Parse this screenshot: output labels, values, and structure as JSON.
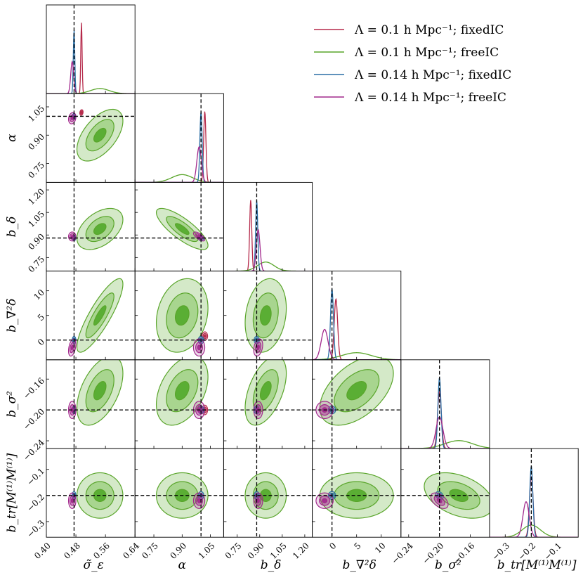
{
  "chart_data": {
    "type": "corner",
    "title": "",
    "params": [
      {
        "key": "sigma_eps",
        "label": "σ̃_ε",
        "range": [
          0.4,
          0.64
        ],
        "ticks": [
          0.4,
          0.48,
          0.56,
          0.64
        ],
        "tick_labels": [
          "0.40",
          "0.48",
          "0.56",
          "0.64"
        ],
        "truth": 0.475
      },
      {
        "key": "alpha",
        "label": "α",
        "range": [
          0.65,
          1.12
        ],
        "ticks": [
          0.75,
          0.9,
          1.05
        ],
        "tick_labels": [
          "0.75",
          "0.90",
          "1.05"
        ],
        "truth": 1.0
      },
      {
        "key": "b_delta",
        "label": "b_δ",
        "range": [
          0.66,
          1.25
        ],
        "ticks": [
          0.75,
          0.9,
          1.05,
          1.2
        ],
        "tick_labels": [
          "0.75",
          "0.90",
          "1.05",
          "1.20"
        ],
        "truth": 0.88
      },
      {
        "key": "b_lap",
        "label": "b_∇²δ",
        "range": [
          -4,
          14
        ],
        "ticks": [
          0,
          5,
          10
        ],
        "tick_labels": [
          "0",
          "5",
          "10"
        ],
        "truth": 0
      },
      {
        "key": "b_s2",
        "label": "b_σ²",
        "range": [
          -0.25,
          -0.135
        ],
        "ticks": [
          -0.24,
          -0.2,
          -0.16
        ],
        "tick_labels": [
          "−0.24",
          "−0.20",
          "−0.16"
        ],
        "truth": -0.2
      },
      {
        "key": "b_tr",
        "label": "b_tr[M⁽¹⁾M⁽¹⁾]",
        "range": [
          -0.36,
          -0.02
        ],
        "ticks": [
          -0.3,
          -0.2,
          -0.1
        ],
        "tick_labels": [
          "−0.3",
          "−0.2",
          "−0.1"
        ],
        "truth": -0.2
      }
    ],
    "series": [
      {
        "name": "Λ = 0.1 h Mpc⁻¹; FIXEDIC",
        "color": "#b5294a",
        "mean": [
          0.495,
          1.02,
          0.84,
          0.8,
          -0.2,
          -0.2
        ],
        "sd": [
          0.0018,
          0.006,
          0.007,
          0.35,
          0.0025,
          0.007
        ],
        "rho": {
          "1-0": 0.2,
          "2-0": 0.1,
          "2-1": -0.5,
          "3-0": 0.3,
          "4-0": 0.1,
          "5-4": -0.3
        }
      },
      {
        "name": "Λ = 0.1 h Mpc⁻¹; FREEIC",
        "color": "#59a52a",
        "mean": [
          0.545,
          0.9,
          0.94,
          5.0,
          -0.175,
          -0.2
        ],
        "sd": [
          0.025,
          0.055,
          0.055,
          3.0,
          0.018,
          0.035
        ],
        "rho": {
          "1-0": 0.55,
          "2-0": 0.45,
          "2-1": -0.8,
          "3-0": 0.85,
          "3-1": 0.2,
          "3-2": 0.2,
          "4-0": 0.5,
          "4-1": 0.4,
          "4-2": 0.5,
          "4-3": 0.5,
          "5-4": -0.4
        }
      },
      {
        "name": "Λ = 0.14 h Mpc⁻¹; FIXEDIC",
        "color": "#2a6ea5",
        "mean": [
          0.475,
          1.0,
          0.88,
          0.0,
          -0.2,
          -0.2
        ],
        "sd": [
          0.002,
          0.006,
          0.007,
          0.3,
          0.002,
          0.006
        ],
        "rho": {
          "5-4": -0.3
        }
      },
      {
        "name": "Λ = 0.14 h Mpc⁻¹; FREEIC",
        "color": "#a2288c",
        "mean": [
          0.47,
          0.99,
          0.89,
          -1.5,
          -0.2,
          -0.22
        ],
        "sd": [
          0.004,
          0.012,
          0.012,
          0.7,
          0.0045,
          0.012
        ],
        "rho": {
          "1-0": 0.2,
          "2-1": -0.7,
          "3-0": 0.4,
          "3-2": 0.3,
          "5-4": -0.5
        }
      }
    ],
    "legend": {
      "placement": "top-right",
      "entries": [
        {
          "prefix": "Λ = 0.1 ",
          "tail": "h Mpc⁻¹;  fixedIC",
          "color": "#b5294a"
        },
        {
          "prefix": "Λ = 0.1 ",
          "tail": "h Mpc⁻¹;  freeIC",
          "color": "#59a52a"
        },
        {
          "prefix": "Λ = 0.14 ",
          "tail": "h Mpc⁻¹;  fixedIC",
          "color": "#2a6ea5"
        },
        {
          "prefix": "Λ = 0.14 ",
          "tail": "h Mpc⁻¹;  freeIC",
          "color": "#a2288c"
        }
      ]
    },
    "truth_line_style": "dashed black"
  }
}
